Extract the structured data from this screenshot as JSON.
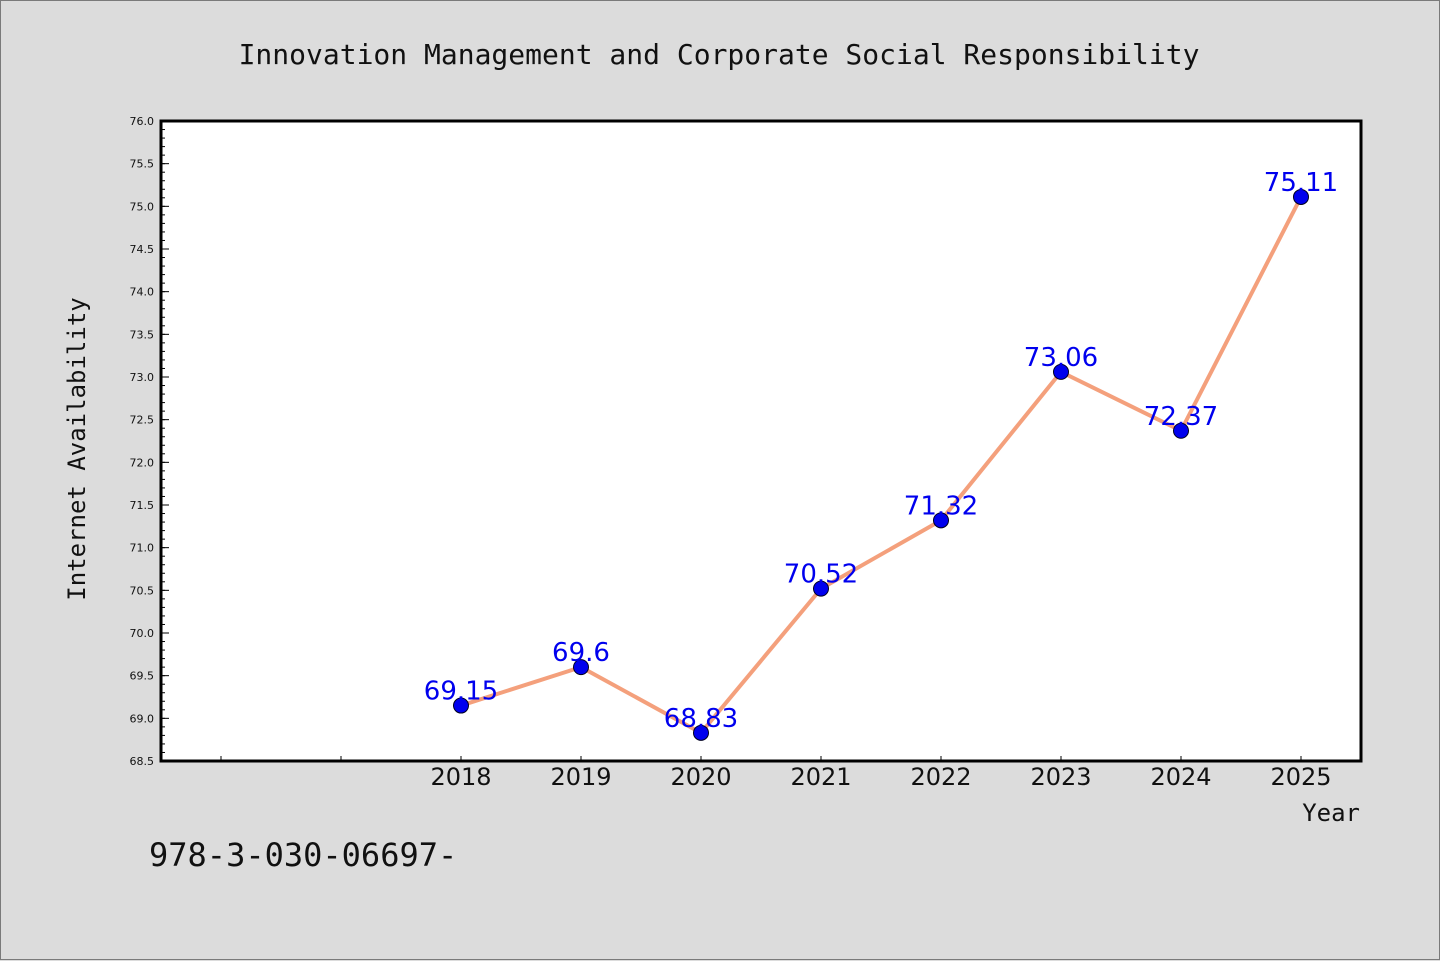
{
  "chart_data": {
    "type": "line",
    "title": "Innovation Management and Corporate Social Responsibility",
    "xlabel": "Year",
    "ylabel": "Internet Availability",
    "x": [
      "2018",
      "2019",
      "2020",
      "2021",
      "2022",
      "2023",
      "2024",
      "2025"
    ],
    "series": [
      {
        "values": [
          69.15,
          69.6,
          68.83,
          70.52,
          71.32,
          73.06,
          72.37,
          75.11
        ],
        "data_labels": [
          "69.15",
          "69.6",
          "68.83",
          "70.52",
          "71.32",
          "73.06",
          "72.37",
          "75.11"
        ],
        "line_color": "#f4a07c",
        "marker_color": "#0000ee",
        "label_color": "#0000ee"
      }
    ],
    "ylim": [
      68.5,
      76.0
    ],
    "yticks": [
      "68.5",
      "69.0",
      "69.5",
      "70.0",
      "70.5",
      "71.0",
      "71.5",
      "72.0",
      "72.5",
      "73.0",
      "73.5",
      "74.0",
      "74.5",
      "75.0",
      "75.5",
      "76.0"
    ],
    "x_slots_before_first": 2,
    "grid": false,
    "legend": "none"
  },
  "footer": {
    "text": "978-3-030-06697-"
  }
}
